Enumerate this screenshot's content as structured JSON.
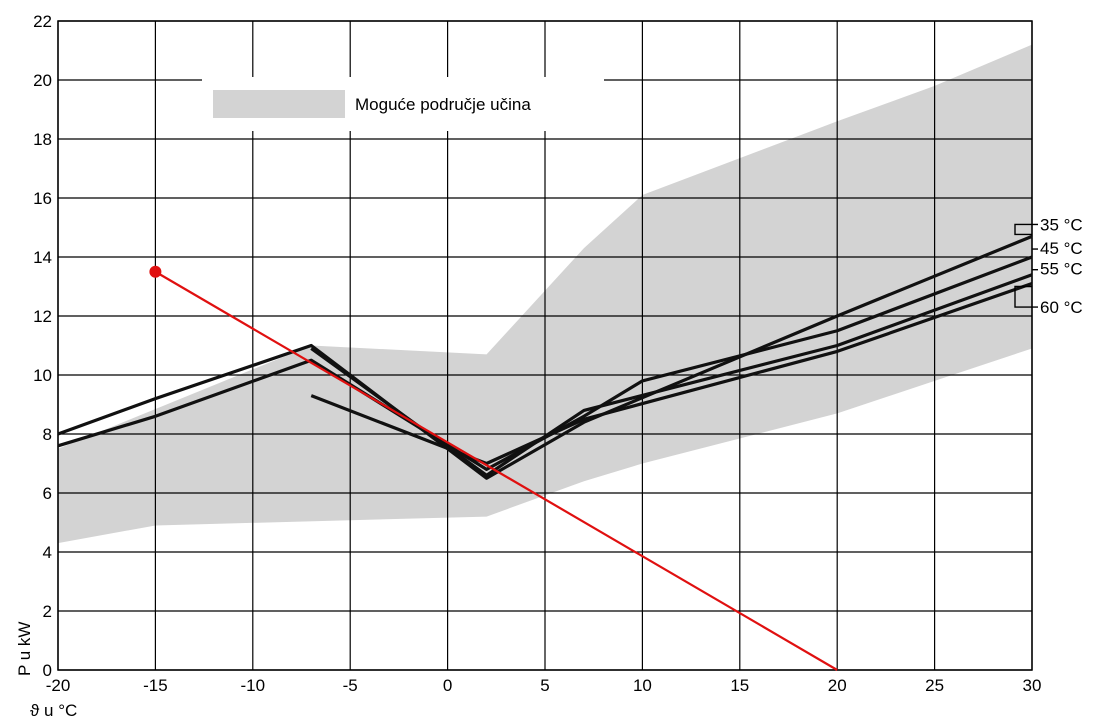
{
  "chart_data": {
    "type": "line",
    "title": "",
    "xlabel": "ϑ u °C",
    "ylabel": "P u kW",
    "xlim": [
      -20,
      30
    ],
    "ylim": [
      0,
      22
    ],
    "x_ticks": [
      -20,
      -15,
      -10,
      -5,
      0,
      5,
      10,
      15,
      20,
      25,
      30
    ],
    "y_ticks": [
      0,
      2,
      4,
      6,
      8,
      10,
      12,
      14,
      16,
      18,
      20,
      22
    ],
    "grid": true,
    "legend": {
      "placement": "top-left",
      "entries": [
        "Moguće područje učina"
      ]
    },
    "area": {
      "name": "Moguće područje učina",
      "color": "#d3d3d3",
      "upper": [
        [
          -20,
          7.5
        ],
        [
          -7,
          11
        ],
        [
          2,
          10.7
        ],
        [
          7,
          14.3
        ],
        [
          10,
          16.1
        ],
        [
          20,
          18.6
        ],
        [
          25,
          19.8
        ],
        [
          30,
          21.2
        ]
      ],
      "lower": [
        [
          -20,
          4.3
        ],
        [
          -15,
          4.9
        ],
        [
          2,
          5.2
        ],
        [
          7,
          6.4
        ],
        [
          10,
          7
        ],
        [
          20,
          8.7
        ],
        [
          25,
          9.8
        ],
        [
          30,
          10.9
        ]
      ]
    },
    "series": [
      {
        "name": "35 °C",
        "color": "#111111",
        "points": [
          [
            -20,
            8.0
          ],
          [
            -15,
            9.2
          ],
          [
            -7,
            11.0
          ],
          [
            2,
            6.5
          ],
          [
            7,
            8.4
          ],
          [
            20,
            12.0
          ],
          [
            30,
            14.7
          ]
        ]
      },
      {
        "name": "45 °C",
        "color": "#111111",
        "points": [
          [
            -20,
            7.6
          ],
          [
            -15,
            8.6
          ],
          [
            -7,
            10.5
          ],
          [
            2,
            6.8
          ],
          [
            7,
            8.6
          ],
          [
            10,
            9.8
          ],
          [
            20,
            11.5
          ],
          [
            30,
            14.0
          ]
        ]
      },
      {
        "name": "55 °C",
        "color": "#111111",
        "points": [
          [
            -7,
            10.9
          ],
          [
            2,
            6.6
          ],
          [
            7,
            8.8
          ],
          [
            20,
            11.0
          ],
          [
            30,
            13.4
          ]
        ]
      },
      {
        "name": "60 °C",
        "color": "#111111",
        "points": [
          [
            -7,
            9.3
          ],
          [
            2,
            7.0
          ],
          [
            7,
            8.5
          ],
          [
            20,
            10.8
          ],
          [
            30,
            13.1
          ]
        ]
      }
    ],
    "series_label_positions": [
      "35 °C",
      "45 °C",
      "55 °C",
      "60 °C"
    ],
    "annotation_line": {
      "color": "#e01010",
      "points": [
        [
          -15,
          13.5
        ],
        [
          20,
          0
        ]
      ],
      "marker_at": [
        -15,
        13.5
      ]
    }
  }
}
